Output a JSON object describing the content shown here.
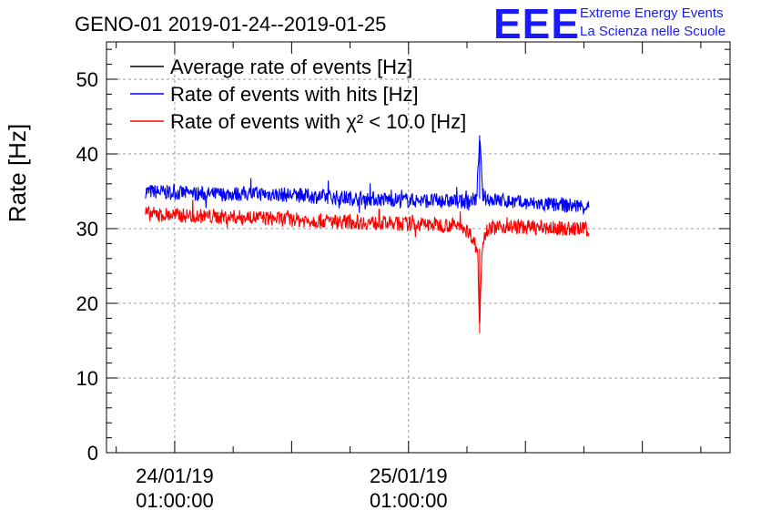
{
  "chart_data": {
    "type": "line",
    "title": "GENO-01 2019-01-24--2019-01-25",
    "ylabel": "Rate [Hz]",
    "xlabel": "",
    "ylim": [
      0,
      55
    ],
    "yticks": [
      0,
      10,
      20,
      30,
      40,
      50
    ],
    "xlim_hours": [
      -7,
      57
    ],
    "xticks": [
      {
        "date": "24/01/19",
        "time": "01:00:00",
        "hour": 0
      },
      {
        "date": "25/01/19",
        "time": "01:00:00",
        "hour": 24
      }
    ],
    "grid": true,
    "legend_position": "top-left",
    "series": [
      {
        "name": "Average rate of events [Hz]",
        "color": "#000000",
        "points": []
      },
      {
        "name": "Rate of events with hits [Hz]",
        "color": "#0000ff",
        "points": [
          [
            -3,
            35.0
          ],
          [
            0,
            34.8
          ],
          [
            4,
            34.6
          ],
          [
            8,
            34.7
          ],
          [
            12,
            34.5
          ],
          [
            16,
            34.2
          ],
          [
            20,
            34.0
          ],
          [
            24,
            33.8
          ],
          [
            28,
            33.7
          ],
          [
            30,
            33.6
          ],
          [
            31,
            34.0
          ],
          [
            31.3,
            42.5
          ],
          [
            31.6,
            34.5
          ],
          [
            32,
            34.0
          ],
          [
            36,
            33.4
          ],
          [
            40,
            33.1
          ],
          [
            42.5,
            33.0
          ]
        ]
      },
      {
        "name": "Rate of events with χ² < 10.0 [Hz]",
        "color": "#ff0000",
        "points": [
          [
            -3,
            32.0
          ],
          [
            0,
            31.8
          ],
          [
            4,
            31.6
          ],
          [
            8,
            31.5
          ],
          [
            12,
            31.2
          ],
          [
            16,
            31.0
          ],
          [
            20,
            30.8
          ],
          [
            24,
            30.6
          ],
          [
            28,
            30.5
          ],
          [
            29.5,
            30.4
          ],
          [
            30.5,
            29.0
          ],
          [
            31.1,
            27.0
          ],
          [
            31.3,
            16.0
          ],
          [
            31.5,
            27.5
          ],
          [
            32,
            30.0
          ],
          [
            34,
            30.3
          ],
          [
            36,
            30.2
          ],
          [
            40,
            30.0
          ],
          [
            42.5,
            29.9
          ]
        ]
      }
    ]
  },
  "logo": {
    "mark": "EEE",
    "line1": "Extreme Energy Events",
    "line2": "La Scienza nelle Scuole"
  }
}
